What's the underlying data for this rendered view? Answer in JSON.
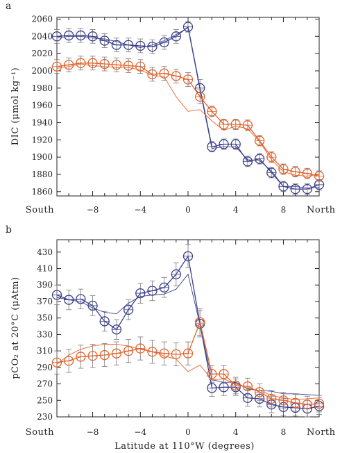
{
  "chart_data": [
    {
      "type": "line",
      "panel_label": "a",
      "ylabel": "DIC (μmol kg⁻¹)",
      "xlabel": "",
      "x_left_label": "South",
      "x_right_label": "North",
      "xlim": [
        -11,
        11
      ],
      "ylim": [
        1855,
        2062
      ],
      "x_ticks": [
        -8,
        -4,
        0,
        4,
        8
      ],
      "x_tick_labels": [
        "−8",
        "−4",
        "0",
        "4",
        "8"
      ],
      "y_ticks": [
        1860,
        1880,
        1900,
        1920,
        1940,
        1960,
        1980,
        2000,
        2020,
        2040,
        2060
      ],
      "series": [
        {
          "color": "#3a3f8c",
          "marker": "circle",
          "x": [
            -11,
            -10,
            -9,
            -8,
            -7,
            -6,
            -5,
            -4,
            -3,
            -2,
            -1,
            0,
            1,
            2,
            3,
            4,
            5,
            6,
            7,
            8,
            9,
            10,
            11
          ],
          "y": [
            2040,
            2041,
            2041,
            2040,
            2035,
            2030,
            2030,
            2029,
            2028,
            2033,
            2040,
            2051,
            1980,
            1912,
            1915,
            1915,
            1895,
            1898,
            1882,
            1866,
            1863,
            1863,
            1868
          ],
          "err": [
            8,
            8,
            8,
            8,
            8,
            8,
            8,
            8,
            8,
            8,
            8,
            6,
            10,
            6,
            6,
            6,
            6,
            6,
            6,
            6,
            6,
            6,
            6
          ]
        },
        {
          "color": "#3a3f8c",
          "marker": "none",
          "x": [
            -11,
            -10,
            -9,
            -8,
            -7,
            -6,
            -5,
            -4,
            -3,
            -2,
            -1,
            0,
            1,
            2,
            3,
            4,
            5,
            6,
            7,
            8,
            9,
            10,
            11
          ],
          "y": [
            2038,
            2040,
            2040,
            2038,
            2037,
            2034,
            2030,
            2027,
            2030,
            2035,
            2042,
            2050,
            1978,
            1910,
            1912,
            1912,
            1897,
            1896,
            1884,
            1866,
            1866,
            1864,
            1865
          ]
        },
        {
          "color": "#e8622a",
          "marker": "circle",
          "x": [
            -11,
            -10,
            -9,
            -8,
            -7,
            -6,
            -5,
            -4,
            -3,
            -2,
            -1,
            0,
            1,
            2,
            3,
            4,
            5,
            6,
            7,
            8,
            9,
            10,
            11
          ],
          "y": [
            2005,
            2007,
            2009,
            2009,
            2008,
            2007,
            2006,
            2005,
            1996,
            1997,
            1994,
            1990,
            1970,
            1953,
            1938,
            1938,
            1937,
            1919,
            1900,
            1886,
            1883,
            1881,
            1878
          ],
          "err": [
            8,
            8,
            8,
            8,
            8,
            8,
            8,
            8,
            8,
            8,
            8,
            8,
            8,
            6,
            6,
            6,
            6,
            6,
            6,
            6,
            6,
            6,
            6
          ]
        },
        {
          "color": "#e8622a",
          "marker": "none",
          "x": [
            -11,
            -10,
            -9,
            -8,
            -7,
            -6,
            -5,
            -4,
            -3,
            -2,
            -1,
            0,
            1,
            2,
            3,
            4,
            5,
            6,
            7,
            8,
            9,
            10,
            11
          ],
          "y": [
            2003,
            2005,
            2008,
            2006,
            2005,
            2004,
            2004,
            2001,
            1995,
            1993,
            1970,
            1953,
            1955,
            1942,
            1931,
            1936,
            1933,
            1918,
            1897,
            1883,
            1879,
            1878,
            1880
          ]
        }
      ]
    },
    {
      "type": "line",
      "panel_label": "b",
      "ylabel": "pCO₂ at 20°C (μAtm)",
      "xlabel": "Latitude at 110°W (degrees)",
      "x_left_label": "South",
      "x_right_label": "North",
      "xlim": [
        -11,
        11
      ],
      "ylim": [
        230,
        445
      ],
      "x_ticks": [
        -8,
        -4,
        0,
        4,
        8
      ],
      "x_tick_labels": [
        "−8",
        "−4",
        "0",
        "4",
        "8"
      ],
      "y_ticks": [
        230,
        250,
        270,
        290,
        310,
        330,
        350,
        370,
        390,
        410,
        430
      ],
      "series": [
        {
          "color": "#3a3f8c",
          "marker": "circle",
          "x": [
            -11,
            -10,
            -9,
            -8,
            -7,
            -6,
            -5,
            -4,
            -3,
            -2,
            -1,
            0,
            1,
            2,
            3,
            4,
            5,
            6,
            7,
            8,
            9,
            10,
            11
          ],
          "y": [
            378,
            372,
            373,
            365,
            346,
            336,
            360,
            380,
            383,
            387,
            403,
            425,
            343,
            265,
            266,
            266,
            253,
            252,
            245,
            242,
            241,
            240,
            243
          ],
          "err": [
            12,
            12,
            12,
            12,
            12,
            12,
            12,
            12,
            12,
            12,
            14,
            14,
            16,
            10,
            10,
            10,
            10,
            10,
            10,
            10,
            10,
            10,
            10
          ]
        },
        {
          "color": "#3a3f8c",
          "marker": "none",
          "x": [
            -11,
            -10,
            -9,
            -8,
            -7,
            -6,
            -5,
            -4,
            -3,
            -2,
            -1,
            0,
            1,
            2,
            3,
            4,
            5,
            6,
            7,
            8,
            9,
            10,
            11
          ],
          "y": [
            375,
            372,
            370,
            362,
            357,
            355,
            368,
            376,
            378,
            379,
            385,
            403,
            342,
            275,
            272,
            272,
            264,
            262,
            261,
            258,
            258,
            257,
            256
          ]
        },
        {
          "color": "#e8622a",
          "marker": "circle",
          "x": [
            -11,
            -10,
            -9,
            -8,
            -7,
            -6,
            -5,
            -4,
            -3,
            -2,
            -1,
            0,
            1,
            2,
            3,
            4,
            5,
            6,
            7,
            8,
            9,
            10,
            11
          ],
          "y": [
            296,
            298,
            303,
            304,
            305,
            307,
            310,
            313,
            309,
            307,
            306,
            307,
            345,
            282,
            282,
            268,
            267,
            260,
            252,
            250,
            247,
            245,
            246
          ],
          "err": [
            14,
            14,
            14,
            14,
            14,
            14,
            14,
            14,
            14,
            14,
            14,
            14,
            16,
            10,
            10,
            10,
            10,
            10,
            10,
            10,
            10,
            10,
            10
          ]
        },
        {
          "color": "#e8622a",
          "marker": "none",
          "x": [
            -11,
            -10,
            -9,
            -8,
            -7,
            -6,
            -5,
            -4,
            -3,
            -2,
            -1,
            0,
            1,
            2,
            3,
            4,
            5,
            6,
            7,
            8,
            9,
            10,
            11
          ],
          "y": [
            294,
            305,
            312,
            316,
            318,
            318,
            316,
            312,
            309,
            304,
            300,
            285,
            293,
            275,
            276,
            270,
            265,
            262,
            256,
            253,
            251,
            252,
            253
          ]
        }
      ]
    }
  ]
}
